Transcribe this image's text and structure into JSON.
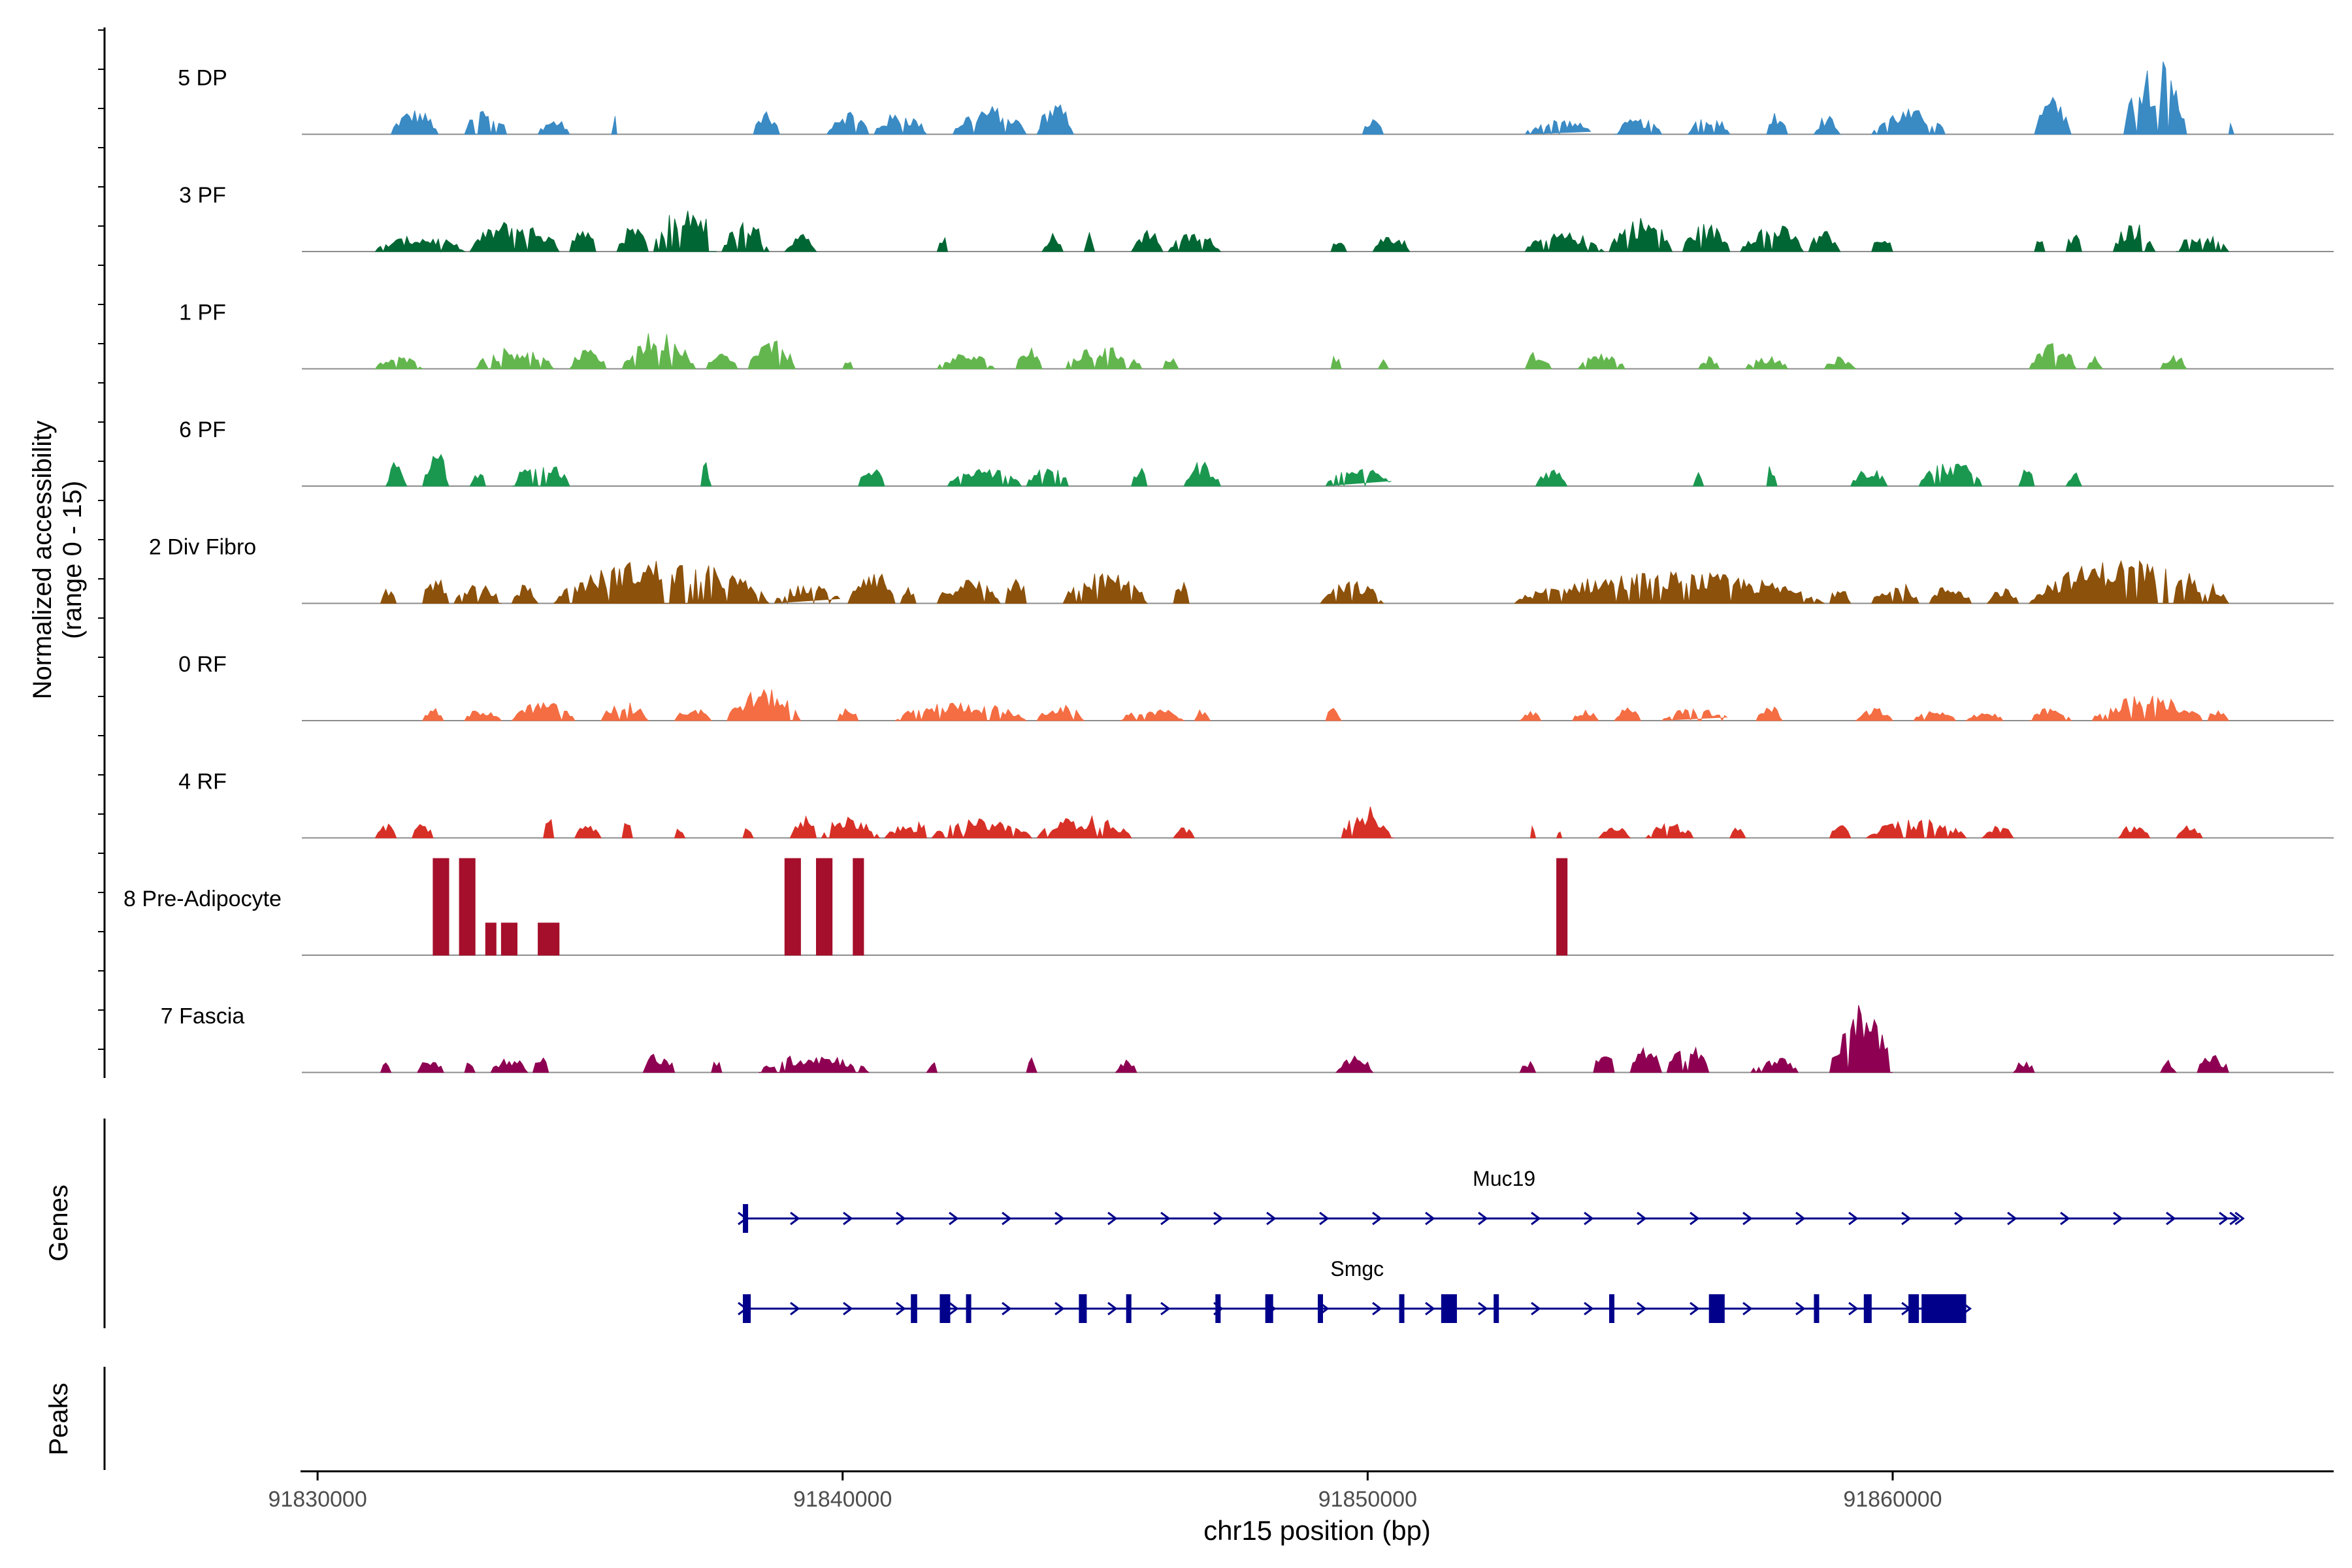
{
  "chart_data": {
    "type": "area",
    "title": "",
    "chromosome": "chr15",
    "xlabel": "chr15 position (bp)",
    "xlim": [
      91829700,
      91868400
    ],
    "x_ticks": [
      {
        "value": 91830000,
        "label": "91830000"
      },
      {
        "value": 91840000,
        "label": "91840000"
      },
      {
        "value": 91850000,
        "label": "91850000"
      },
      {
        "value": 91860000,
        "label": "91860000"
      }
    ],
    "ylabel_line1": "Normalized accessibility",
    "ylabel_line2": "(range 0 - 15)",
    "ylim": [
      0,
      15
    ],
    "genes_label": "Genes",
    "peaks_label": "Peaks",
    "peaks": [],
    "tracks": [
      {
        "name": "5 DP",
        "color": "#3A8AC4",
        "regions": [
          [
            91831400,
            91832300,
            4
          ],
          [
            91832800,
            91833600,
            4.5
          ],
          [
            91834200,
            91834800,
            2.5
          ],
          [
            91835600,
            91835700,
            4
          ],
          [
            91838300,
            91838800,
            3.5
          ],
          [
            91839700,
            91840500,
            4
          ],
          [
            91840600,
            91841600,
            3.5
          ],
          [
            91842100,
            91843500,
            4.5
          ],
          [
            91843700,
            91844400,
            5
          ],
          [
            91849900,
            91850300,
            2.5
          ],
          [
            91853000,
            91854300,
            2.5
          ],
          [
            91854700,
            91855600,
            2.5
          ],
          [
            91856100,
            91856900,
            3.5
          ],
          [
            91857600,
            91858000,
            4
          ],
          [
            91858500,
            91859000,
            3
          ],
          [
            91859600,
            91861000,
            4
          ],
          [
            91862700,
            91863400,
            6
          ],
          [
            91864400,
            91865600,
            12
          ],
          [
            91866400,
            91866500,
            2
          ]
        ]
      },
      {
        "name": "3 PF",
        "color": "#006633",
        "regions": [
          [
            91831100,
            91832800,
            2.5
          ],
          [
            91832900,
            91834600,
            5
          ],
          [
            91834800,
            91835300,
            4
          ],
          [
            91835700,
            91836300,
            4
          ],
          [
            91836400,
            91837600,
            8
          ],
          [
            91837700,
            91838600,
            5
          ],
          [
            91838900,
            91839500,
            3
          ],
          [
            91841800,
            91842000,
            3
          ],
          [
            91843800,
            91844200,
            3
          ],
          [
            91844600,
            91844800,
            3
          ],
          [
            91845500,
            91846100,
            3.5
          ],
          [
            91846200,
            91847200,
            3
          ],
          [
            91849300,
            91849600,
            3
          ],
          [
            91850100,
            91850800,
            3
          ],
          [
            91853000,
            91854500,
            3
          ],
          [
            91854600,
            91855800,
            5.5
          ],
          [
            91856000,
            91856900,
            4.5
          ],
          [
            91857100,
            91858300,
            4.5
          ],
          [
            91858400,
            91859000,
            3.5
          ],
          [
            91859600,
            91860000,
            2.5
          ],
          [
            91862700,
            91862900,
            3
          ],
          [
            91863300,
            91863600,
            3
          ],
          [
            91864200,
            91865000,
            4.5
          ],
          [
            91865400,
            91866400,
            3
          ]
        ]
      },
      {
        "name": "1 PF",
        "color": "#63B64E",
        "regions": [
          [
            91831100,
            91832000,
            2
          ],
          [
            91833000,
            91834500,
            3.5
          ],
          [
            91834800,
            91835500,
            3
          ],
          [
            91835800,
            91837200,
            6
          ],
          [
            91837400,
            91838000,
            2.5
          ],
          [
            91838200,
            91839100,
            4.5
          ],
          [
            91840000,
            91840200,
            2
          ],
          [
            91841800,
            91842900,
            2.5
          ],
          [
            91843300,
            91843800,
            3.5
          ],
          [
            91844200,
            91845700,
            3.5
          ],
          [
            91846100,
            91846400,
            2
          ],
          [
            91849300,
            91849500,
            2.5
          ],
          [
            91850200,
            91850400,
            1.5
          ],
          [
            91853000,
            91853500,
            3
          ],
          [
            91854000,
            91854900,
            2.5
          ],
          [
            91856300,
            91856700,
            2
          ],
          [
            91857200,
            91858000,
            2
          ],
          [
            91858700,
            91859300,
            2
          ],
          [
            91862600,
            91863500,
            4
          ],
          [
            91863700,
            91864000,
            2
          ],
          [
            91865100,
            91865600,
            2.5
          ]
        ]
      },
      {
        "name": "6 PF",
        "color": "#1A9850",
        "regions": [
          [
            91831300,
            91831700,
            4
          ],
          [
            91832000,
            91832500,
            6
          ],
          [
            91832900,
            91833200,
            3
          ],
          [
            91833700,
            91834800,
            4
          ],
          [
            91837300,
            91837500,
            4
          ],
          [
            91840300,
            91840800,
            3
          ],
          [
            91842000,
            91843400,
            3
          ],
          [
            91843500,
            91844300,
            4
          ],
          [
            91845500,
            91845800,
            3
          ],
          [
            91846500,
            91847200,
            4
          ],
          [
            91849200,
            91850500,
            3
          ],
          [
            91853200,
            91853800,
            3
          ],
          [
            91856200,
            91856400,
            3
          ],
          [
            91857600,
            91857800,
            4
          ],
          [
            91859200,
            91859900,
            3
          ],
          [
            91860500,
            91861700,
            4
          ],
          [
            91862400,
            91862700,
            4
          ],
          [
            91863300,
            91863600,
            3
          ]
        ]
      },
      {
        "name": "2 Div Fibro",
        "color": "#8C510A",
        "regions": [
          [
            91831200,
            91831500,
            3
          ],
          [
            91832000,
            91832500,
            4.5
          ],
          [
            91832600,
            91833500,
            3
          ],
          [
            91833700,
            91834200,
            3
          ],
          [
            91834500,
            91838600,
            7
          ],
          [
            91838700,
            91840000,
            3
          ],
          [
            91840100,
            91841000,
            6
          ],
          [
            91841100,
            91841400,
            2.5
          ],
          [
            91841800,
            91843000,
            4
          ],
          [
            91843100,
            91843500,
            5
          ],
          [
            91844200,
            91845800,
            5
          ],
          [
            91846300,
            91846600,
            4
          ],
          [
            91849100,
            91850300,
            3.5
          ],
          [
            91852800,
            91858700,
            5
          ],
          [
            91858800,
            91859200,
            3
          ],
          [
            91859600,
            91860500,
            3.5
          ],
          [
            91860700,
            91861500,
            3
          ],
          [
            91861800,
            91862400,
            2.5
          ],
          [
            91862600,
            91866400,
            7
          ]
        ]
      },
      {
        "name": "0 RF",
        "color": "#F46D43",
        "regions": [
          [
            91832000,
            91832400,
            2
          ],
          [
            91832800,
            91833500,
            2
          ],
          [
            91833700,
            91834900,
            3
          ],
          [
            91835400,
            91836300,
            3
          ],
          [
            91836800,
            91837500,
            2
          ],
          [
            91837800,
            91839200,
            5
          ],
          [
            91839900,
            91840300,
            2
          ],
          [
            91841000,
            91843500,
            3
          ],
          [
            91843700,
            91844600,
            2.5
          ],
          [
            91845300,
            91846500,
            2
          ],
          [
            91846700,
            91847000,
            2
          ],
          [
            91849200,
            91849500,
            2
          ],
          [
            91852900,
            91853300,
            1.5
          ],
          [
            91853900,
            91854400,
            2
          ],
          [
            91854700,
            91855200,
            2
          ],
          [
            91855600,
            91856900,
            2
          ],
          [
            91857400,
            91857900,
            2.5
          ],
          [
            91859300,
            91860000,
            2
          ],
          [
            91860400,
            91861200,
            1.5
          ],
          [
            91861400,
            91862100,
            1.5
          ],
          [
            91862600,
            91863400,
            2
          ],
          [
            91863800,
            91865900,
            4
          ],
          [
            91866000,
            91866400,
            2
          ]
        ]
      },
      {
        "name": "4 RF",
        "color": "#D73027",
        "regions": [
          [
            91831100,
            91831500,
            2.5
          ],
          [
            91831800,
            91832200,
            2.5
          ],
          [
            91834300,
            91834500,
            4
          ],
          [
            91834900,
            91835400,
            3
          ],
          [
            91835800,
            91836000,
            3
          ],
          [
            91836800,
            91837000,
            2
          ],
          [
            91838100,
            91838300,
            2
          ],
          [
            91839000,
            91839500,
            4
          ],
          [
            91839600,
            91840700,
            3.5
          ],
          [
            91840800,
            91841500,
            2
          ],
          [
            91841400,
            91841600,
            3
          ],
          [
            91841700,
            91843600,
            3
          ],
          [
            91843700,
            91845500,
            3.5
          ],
          [
            91846300,
            91846700,
            2
          ],
          [
            91849500,
            91850500,
            5
          ],
          [
            91853100,
            91853200,
            2
          ],
          [
            91853600,
            91853700,
            2
          ],
          [
            91854400,
            91855000,
            2
          ],
          [
            91855300,
            91856200,
            2.5
          ],
          [
            91856900,
            91857200,
            2
          ],
          [
            91858800,
            91859200,
            2
          ],
          [
            91859500,
            91861400,
            3
          ],
          [
            91861700,
            91862300,
            2
          ],
          [
            91864300,
            91864900,
            2.5
          ],
          [
            91865400,
            91865900,
            2
          ]
        ]
      },
      {
        "name": "8 Pre-Adipocyte",
        "color": "#A50F2B",
        "regions": [
          [
            91832200,
            91832500,
            15
          ],
          [
            91832700,
            91833000,
            15
          ],
          [
            91833200,
            91833400,
            5
          ],
          [
            91833500,
            91833800,
            5
          ],
          [
            91834200,
            91834600,
            5
          ],
          [
            91838900,
            91839200,
            15
          ],
          [
            91839500,
            91839800,
            15
          ],
          [
            91840200,
            91840400,
            15
          ],
          [
            91853600,
            91853800,
            15
          ]
        ]
      },
      {
        "name": "7 Fascia",
        "color": "#8E0152",
        "regions": [
          [
            91831200,
            91831400,
            2
          ],
          [
            91831900,
            91832400,
            3
          ],
          [
            91832800,
            91833000,
            2
          ],
          [
            91833300,
            91834000,
            2.5
          ],
          [
            91834100,
            91834400,
            3
          ],
          [
            91836200,
            91836800,
            3.5
          ],
          [
            91837500,
            91837700,
            2
          ],
          [
            91838400,
            91840500,
            3
          ],
          [
            91841600,
            91841800,
            2
          ],
          [
            91843500,
            91843700,
            3
          ],
          [
            91845200,
            91845600,
            2
          ],
          [
            91849400,
            91850100,
            3
          ],
          [
            91852900,
            91853200,
            2
          ],
          [
            91854300,
            91854700,
            4
          ],
          [
            91855000,
            91855600,
            4
          ],
          [
            91855700,
            91856500,
            4.5
          ],
          [
            91857300,
            91858200,
            2.5
          ],
          [
            91858800,
            91860000,
            11
          ],
          [
            91862300,
            91862700,
            2
          ],
          [
            91865100,
            91865400,
            2
          ],
          [
            91865800,
            91866400,
            3
          ]
        ]
      }
    ],
    "genes": [
      {
        "name": "Muc19",
        "strand": "+",
        "start": 91838100,
        "end": 91866600,
        "exons": [
          [
            91838100,
            91838200
          ]
        ]
      },
      {
        "name": "Smgc",
        "strand": "+",
        "start": 91838100,
        "end": 91861400,
        "exons": [
          [
            91838100,
            91838250
          ],
          [
            91841300,
            91841420
          ],
          [
            91841850,
            91842050
          ],
          [
            91842350,
            91842400
          ],
          [
            91844500,
            91844650
          ],
          [
            91845400,
            91845500
          ],
          [
            91847100,
            91847200
          ],
          [
            91848050,
            91848200
          ],
          [
            91849050,
            91849100
          ],
          [
            91850600,
            91850650
          ],
          [
            91851400,
            91851700
          ],
          [
            91852400,
            91852450
          ],
          [
            91854600,
            91854650
          ],
          [
            91856500,
            91856800
          ],
          [
            91858500,
            91858600
          ],
          [
            91859450,
            91859600
          ],
          [
            91860300,
            91860500
          ],
          [
            91860550,
            91861400
          ]
        ]
      }
    ]
  }
}
